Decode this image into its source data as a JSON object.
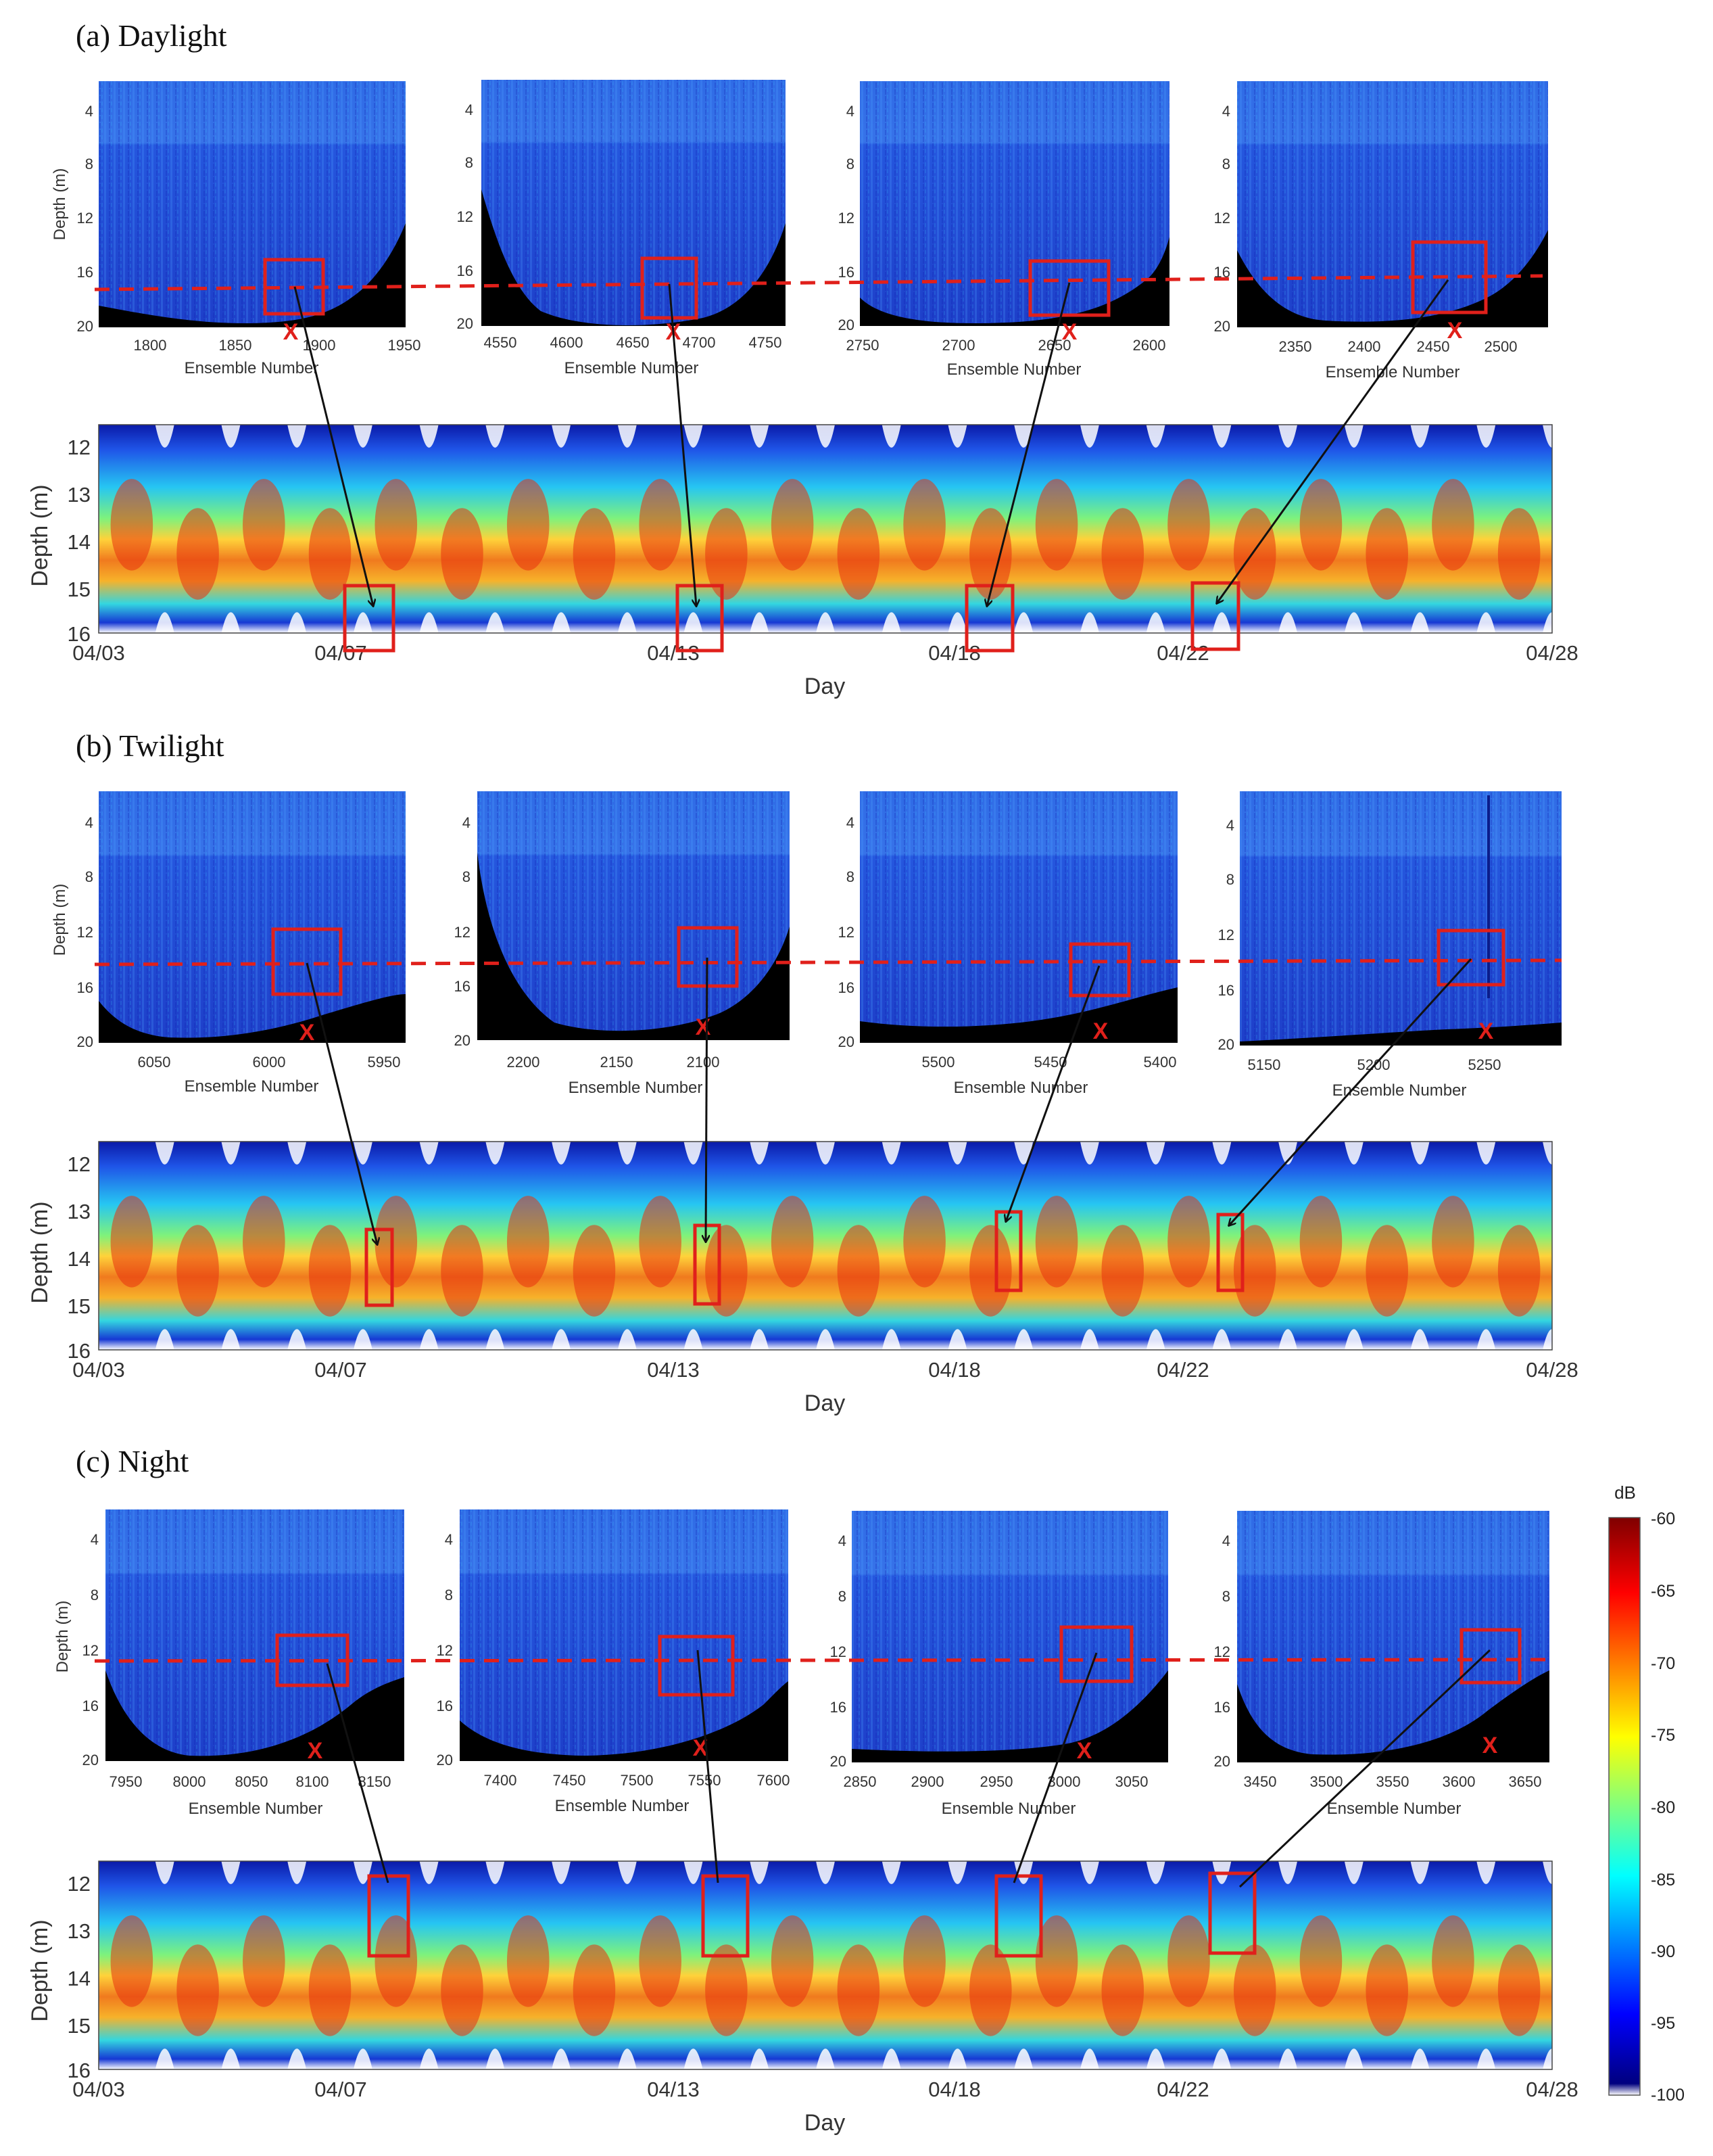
{
  "chart_data": [
    {
      "type": "heatmap",
      "panel": "a",
      "title": "(a) Daylight",
      "echograms": [
        {
          "ylabel": "Depth (m)",
          "xlabel": "Ensemble Number",
          "xticks": [
            "1800",
            "1850",
            "1900",
            "1950"
          ],
          "yticks": [
            "4",
            "8",
            "12",
            "16",
            "20"
          ],
          "ylim": [
            20,
            2
          ],
          "mark": "X"
        },
        {
          "ylabel": "",
          "xlabel": "Ensemble Number",
          "xticks": [
            "4550",
            "4600",
            "4650",
            "4700",
            "4750"
          ],
          "yticks": [
            "4",
            "8",
            "12",
            "16",
            "20"
          ],
          "ylim": [
            20,
            2
          ],
          "mark": "X"
        },
        {
          "ylabel": "",
          "xlabel": "Ensemble Number",
          "xticks": [
            "2750",
            "2700",
            "2650",
            "2600"
          ],
          "yticks": [
            "4",
            "8",
            "12",
            "16",
            "20"
          ],
          "ylim": [
            20,
            2
          ],
          "mark": "X"
        },
        {
          "ylabel": "",
          "xlabel": "Ensemble Number",
          "xticks": [
            "2350",
            "2400",
            "2450",
            "2500"
          ],
          "yticks": [
            "4",
            "8",
            "12",
            "16",
            "20"
          ],
          "ylim": [
            20,
            2
          ],
          "mark": "X"
        }
      ],
      "timeseries": {
        "ylabel": "Depth (m)",
        "xlabel": "Day",
        "xticks": [
          "04/03",
          "04/07",
          "04/13",
          "04/18",
          "04/22",
          "04/28"
        ],
        "yticks": [
          "12",
          "13",
          "14",
          "15",
          "16"
        ],
        "ylim": [
          16,
          11.6
        ]
      }
    },
    {
      "type": "heatmap",
      "panel": "b",
      "title": "(b) Twilight",
      "echograms": [
        {
          "ylabel": "Depth (m)",
          "xlabel": "Ensemble Number",
          "xticks": [
            "6050",
            "6000",
            "5950"
          ],
          "yticks": [
            "4",
            "8",
            "12",
            "16",
            "20"
          ],
          "ylim": [
            20,
            2
          ],
          "mark": "X"
        },
        {
          "ylabel": "",
          "xlabel": "Ensemble Number",
          "xticks": [
            "2200",
            "2150",
            "2100"
          ],
          "yticks": [
            "4",
            "8",
            "12",
            "16",
            "20"
          ],
          "ylim": [
            20,
            2
          ],
          "mark": "X"
        },
        {
          "ylabel": "",
          "xlabel": "Ensemble Number",
          "xticks": [
            "5500",
            "5450",
            "5400"
          ],
          "yticks": [
            "4",
            "8",
            "12",
            "16",
            "20"
          ],
          "ylim": [
            20,
            2
          ],
          "mark": "X"
        },
        {
          "ylabel": "",
          "xlabel": "Ensemble Number",
          "xticks": [
            "5150",
            "5200",
            "5250"
          ],
          "yticks": [
            "4",
            "8",
            "12",
            "16",
            "20"
          ],
          "ylim": [
            20,
            2
          ],
          "mark": "X"
        }
      ],
      "timeseries": {
        "ylabel": "Depth (m)",
        "xlabel": "Day",
        "xticks": [
          "04/03",
          "04/07",
          "04/13",
          "04/18",
          "04/22",
          "04/28"
        ],
        "yticks": [
          "12",
          "13",
          "14",
          "15",
          "16"
        ],
        "ylim": [
          16,
          11.6
        ]
      }
    },
    {
      "type": "heatmap",
      "panel": "c",
      "title": "(c) Night",
      "echograms": [
        {
          "ylabel": "Depth (m)",
          "xlabel": "Ensemble Number",
          "xticks": [
            "7950",
            "8000",
            "8050",
            "8100",
            "8150"
          ],
          "yticks": [
            "4",
            "8",
            "12",
            "16",
            "20"
          ],
          "ylim": [
            20,
            2
          ],
          "mark": "X"
        },
        {
          "ylabel": "",
          "xlabel": "Ensemble Number",
          "xticks": [
            "7400",
            "7450",
            "7500",
            "7550",
            "7600"
          ],
          "yticks": [
            "4",
            "8",
            "12",
            "16",
            "20"
          ],
          "ylim": [
            20,
            2
          ],
          "mark": "X"
        },
        {
          "ylabel": "",
          "xlabel": "Ensemble Number",
          "xticks": [
            "2850",
            "2900",
            "2950",
            "3000",
            "3050"
          ],
          "yticks": [
            "4",
            "8",
            "12",
            "16",
            "20"
          ],
          "ylim": [
            20,
            2
          ],
          "mark": "X"
        },
        {
          "ylabel": "",
          "xlabel": "Ensemble Number",
          "xticks": [
            "3450",
            "3500",
            "3550",
            "3600",
            "3650"
          ],
          "yticks": [
            "4",
            "8",
            "12",
            "16",
            "20"
          ],
          "ylim": [
            20,
            2
          ],
          "mark": "X"
        }
      ],
      "timeseries": {
        "ylabel": "Depth (m)",
        "xlabel": "Day",
        "xticks": [
          "04/03",
          "04/07",
          "04/13",
          "04/18",
          "04/22",
          "04/28"
        ],
        "yticks": [
          "12",
          "13",
          "14",
          "15",
          "16"
        ],
        "ylim": [
          16,
          11.6
        ]
      }
    }
  ],
  "colorbar": {
    "title": "dB",
    "ticks": [
      "-60",
      "-65",
      "-70",
      "-75",
      "-80",
      "-85",
      "-90",
      "-95",
      "-100"
    ],
    "range": [
      -100,
      -60
    ],
    "colormap": "jet"
  },
  "colors": {
    "box": "#e0201b",
    "reference_line": "#e0201b",
    "arrow": "#111111",
    "seabed": "#000000"
  }
}
